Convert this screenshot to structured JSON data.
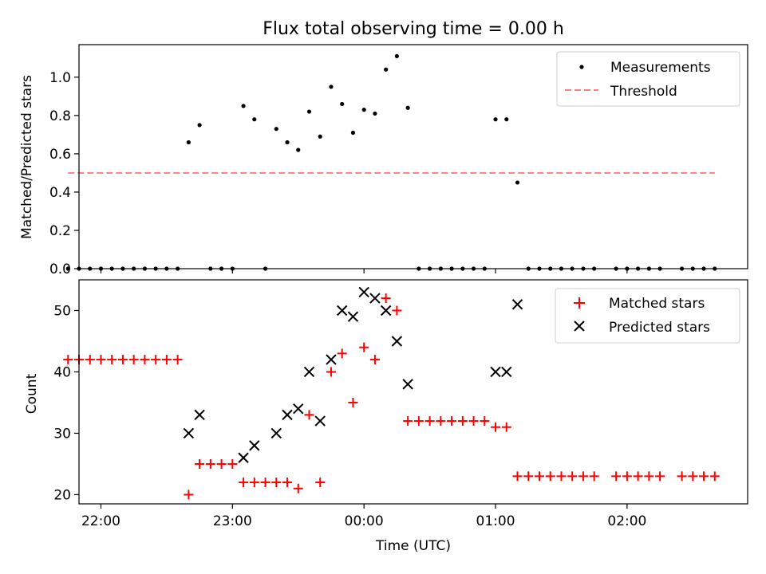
{
  "figure": {
    "title": "Flux total observing time = 0.00 h"
  },
  "chart_data": [
    {
      "type": "scatter",
      "panel": "top",
      "title": "Flux total observing time = 0.00 h",
      "xlabel": "",
      "ylabel": "Matched/Predicted stars",
      "xlim": [
        "21:50",
        "02:55"
      ],
      "ylim": [
        0,
        1.17
      ],
      "yticks": [
        0.0,
        0.2,
        0.4,
        0.6,
        0.8,
        1.0
      ],
      "ytick_labels": [
        "0.0",
        "0.2",
        "0.4",
        "0.6",
        "0.8",
        "1.0"
      ],
      "xticks": [
        "22:00",
        "23:00",
        "00:00",
        "01:00",
        "02:00"
      ],
      "legend_position": "top-right",
      "legend": [
        "Measurements",
        "Threshold"
      ],
      "colors": {
        "measurements": "#000000",
        "threshold": "#ff7f7f"
      },
      "series": [
        {
          "name": "Measurements",
          "kind": "scatter",
          "points": [
            [
              "21:45",
              0
            ],
            [
              "21:50",
              0
            ],
            [
              "21:55",
              0
            ],
            [
              "22:00",
              0
            ],
            [
              "22:05",
              0
            ],
            [
              "22:10",
              0
            ],
            [
              "22:15",
              0
            ],
            [
              "22:20",
              0
            ],
            [
              "22:25",
              0
            ],
            [
              "22:30",
              0
            ],
            [
              "22:35",
              0
            ],
            [
              "22:40",
              0.66
            ],
            [
              "22:45",
              0.75
            ],
            [
              "22:50",
              0
            ],
            [
              "22:55",
              0
            ],
            [
              "23:00",
              0
            ],
            [
              "23:05",
              0.85
            ],
            [
              "23:10",
              0.78
            ],
            [
              "23:15",
              0
            ],
            [
              "23:20",
              0.73
            ],
            [
              "23:25",
              0.66
            ],
            [
              "23:30",
              0.62
            ],
            [
              "23:35",
              0.82
            ],
            [
              "23:40",
              0.69
            ],
            [
              "23:45",
              0.95
            ],
            [
              "23:50",
              0.86
            ],
            [
              "23:55",
              0.71
            ],
            [
              "00:00",
              0.83
            ],
            [
              "00:05",
              0.81
            ],
            [
              "00:10",
              1.04
            ],
            [
              "00:15",
              1.11
            ],
            [
              "00:20",
              0.84
            ],
            [
              "00:25",
              0
            ],
            [
              "00:30",
              0
            ],
            [
              "00:35",
              0
            ],
            [
              "00:40",
              0
            ],
            [
              "00:45",
              0
            ],
            [
              "00:50",
              0
            ],
            [
              "00:55",
              0
            ],
            [
              "01:00",
              0.78
            ],
            [
              "01:05",
              0.78
            ],
            [
              "01:10",
              0.45
            ],
            [
              "01:15",
              0
            ],
            [
              "01:20",
              0
            ],
            [
              "01:25",
              0
            ],
            [
              "01:30",
              0
            ],
            [
              "01:35",
              0
            ],
            [
              "01:40",
              0
            ],
            [
              "01:45",
              0
            ],
            [
              "01:55",
              0
            ],
            [
              "02:00",
              0
            ],
            [
              "02:05",
              0
            ],
            [
              "02:10",
              0
            ],
            [
              "02:15",
              0
            ],
            [
              "02:25",
              0
            ],
            [
              "02:30",
              0
            ],
            [
              "02:35",
              0
            ],
            [
              "02:40",
              0
            ]
          ]
        },
        {
          "name": "Threshold",
          "kind": "dashed-line",
          "points": [
            [
              "21:45",
              0.5
            ],
            [
              "02:40",
              0.5
            ]
          ]
        }
      ]
    },
    {
      "type": "scatter",
      "panel": "bottom",
      "title": "",
      "xlabel": "Time (UTC)",
      "ylabel": "Count",
      "xlim": [
        "21:50",
        "02:55"
      ],
      "ylim": [
        18.5,
        55.0
      ],
      "yticks": [
        20,
        30,
        40,
        50
      ],
      "ytick_labels": [
        "20",
        "30",
        "40",
        "50"
      ],
      "xticks": [
        "22:00",
        "23:00",
        "00:00",
        "01:00",
        "02:00"
      ],
      "xtick_labels": [
        "22:00",
        "23:00",
        "00:00",
        "01:00",
        "02:00"
      ],
      "legend_position": "top-right",
      "legend": [
        "Matched stars",
        "Predicted stars"
      ],
      "colors": {
        "matched": "#ff0000",
        "predicted": "#000000"
      },
      "series": [
        {
          "name": "Matched stars",
          "marker": "+",
          "points": [
            [
              "21:45",
              42
            ],
            [
              "21:50",
              42
            ],
            [
              "21:55",
              42
            ],
            [
              "22:00",
              42
            ],
            [
              "22:05",
              42
            ],
            [
              "22:10",
              42
            ],
            [
              "22:15",
              42
            ],
            [
              "22:20",
              42
            ],
            [
              "22:25",
              42
            ],
            [
              "22:30",
              42
            ],
            [
              "22:35",
              42
            ],
            [
              "22:40",
              20
            ],
            [
              "22:45",
              25
            ],
            [
              "22:50",
              25
            ],
            [
              "22:55",
              25
            ],
            [
              "23:00",
              25
            ],
            [
              "23:05",
              22
            ],
            [
              "23:10",
              22
            ],
            [
              "23:15",
              22
            ],
            [
              "23:20",
              22
            ],
            [
              "23:25",
              22
            ],
            [
              "23:30",
              21
            ],
            [
              "23:35",
              33
            ],
            [
              "23:40",
              22
            ],
            [
              "23:45",
              40
            ],
            [
              "23:50",
              43
            ],
            [
              "23:55",
              35
            ],
            [
              "00:00",
              44
            ],
            [
              "00:05",
              42
            ],
            [
              "00:10",
              52
            ],
            [
              "00:15",
              50
            ],
            [
              "00:20",
              32
            ],
            [
              "00:25",
              32
            ],
            [
              "00:30",
              32
            ],
            [
              "00:35",
              32
            ],
            [
              "00:40",
              32
            ],
            [
              "00:45",
              32
            ],
            [
              "00:50",
              32
            ],
            [
              "00:55",
              32
            ],
            [
              "01:00",
              31
            ],
            [
              "01:05",
              31
            ],
            [
              "01:10",
              23
            ],
            [
              "01:15",
              23
            ],
            [
              "01:20",
              23
            ],
            [
              "01:25",
              23
            ],
            [
              "01:30",
              23
            ],
            [
              "01:35",
              23
            ],
            [
              "01:40",
              23
            ],
            [
              "01:45",
              23
            ],
            [
              "01:55",
              23
            ],
            [
              "02:00",
              23
            ],
            [
              "02:05",
              23
            ],
            [
              "02:10",
              23
            ],
            [
              "02:15",
              23
            ],
            [
              "02:25",
              23
            ],
            [
              "02:30",
              23
            ],
            [
              "02:35",
              23
            ],
            [
              "02:40",
              23
            ]
          ]
        },
        {
          "name": "Predicted stars",
          "marker": "x",
          "points": [
            [
              "22:40",
              30
            ],
            [
              "22:45",
              33
            ],
            [
              "23:05",
              26
            ],
            [
              "23:10",
              28
            ],
            [
              "23:20",
              30
            ],
            [
              "23:25",
              33
            ],
            [
              "23:30",
              34
            ],
            [
              "23:35",
              40
            ],
            [
              "23:40",
              32
            ],
            [
              "23:45",
              42
            ],
            [
              "23:50",
              50
            ],
            [
              "23:55",
              49
            ],
            [
              "00:00",
              53
            ],
            [
              "00:05",
              52
            ],
            [
              "00:10",
              50
            ],
            [
              "00:15",
              45
            ],
            [
              "00:20",
              38
            ],
            [
              "01:00",
              40
            ],
            [
              "01:05",
              40
            ],
            [
              "01:10",
              51
            ]
          ]
        }
      ]
    }
  ]
}
